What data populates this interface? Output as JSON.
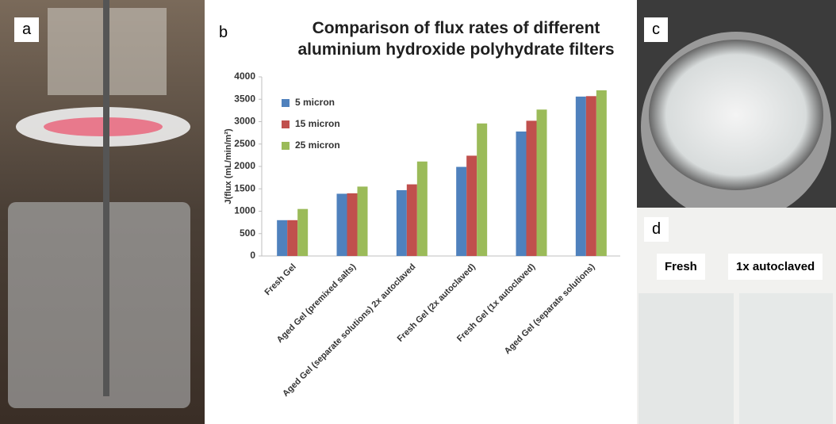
{
  "panels": {
    "a": "a",
    "b": "b",
    "c": "c",
    "d": "d"
  },
  "photo_labels": {
    "fresh": "Fresh",
    "autoclaved": "1x autoclaved"
  },
  "chart_data": {
    "type": "bar",
    "title": "Comparison of flux rates of different aluminium hydroxide polyhydrate filters",
    "y_label": "J(flux (mL/min/m²)",
    "categories": [
      "Fresh Gel",
      "Aged Gel (premixed salts)",
      "Aged Gel (separate solutions) 2x autoclaved",
      "Fresh Gel (2x autoclaved)",
      "Fresh Gel (1x autoclaved)",
      "Aged Gel (separate solutions)"
    ],
    "series": [
      {
        "name": "5 micron",
        "color": "#4f81bd",
        "values": [
          800,
          1390,
          1470,
          1990,
          2780,
          3560
        ]
      },
      {
        "name": "15 micron",
        "color": "#c0504d",
        "values": [
          800,
          1400,
          1600,
          2240,
          3020,
          3570
        ]
      },
      {
        "name": "25 micron",
        "color": "#9bbb59",
        "values": [
          1050,
          1550,
          2110,
          2960,
          3270,
          3700
        ]
      }
    ],
    "ylim": [
      0,
      4000
    ],
    "yticks": [
      0,
      500,
      1000,
      1500,
      2000,
      2500,
      3000,
      3500,
      4000
    ],
    "grid": false,
    "legend": "top-left"
  }
}
